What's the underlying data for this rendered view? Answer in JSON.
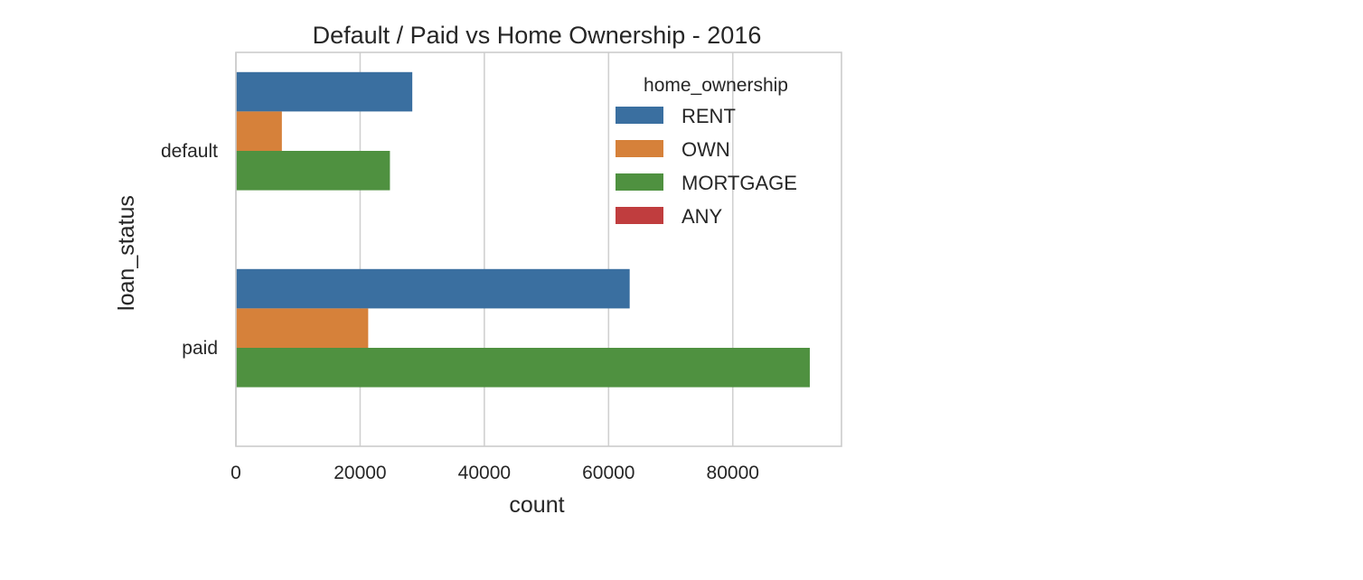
{
  "chart_data": {
    "type": "bar",
    "orientation": "horizontal",
    "title": "Default / Paid vs Home Ownership - 2016",
    "xlabel": "count",
    "ylabel": "loan_status",
    "categories": [
      "default",
      "paid"
    ],
    "xlim": [
      0,
      97500
    ],
    "x_ticks": [
      0,
      20000,
      40000,
      60000,
      80000
    ],
    "x_tick_labels": [
      "0",
      "20000",
      "40000",
      "60000",
      "80000"
    ],
    "grid": true,
    "legend": {
      "title": "home_ownership",
      "placement": "top-right"
    },
    "series": [
      {
        "name": "RENT",
        "color": "#3a6fa0",
        "values": [
          28400,
          63400
        ]
      },
      {
        "name": "OWN",
        "color": "#d6813a",
        "values": [
          7400,
          21300
        ]
      },
      {
        "name": "MORTGAGE",
        "color": "#4f9140",
        "values": [
          24800,
          92400
        ]
      },
      {
        "name": "ANY",
        "color": "#c03d3e",
        "values": [
          0,
          0
        ]
      }
    ]
  }
}
